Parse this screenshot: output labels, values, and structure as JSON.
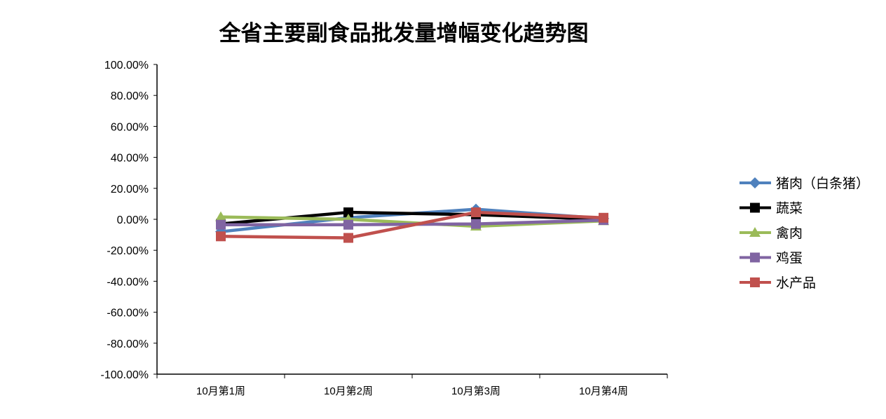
{
  "chart_data": {
    "type": "line",
    "title": "全省主要副食品批发量增幅变化趋势图",
    "categories": [
      "10月第1周",
      "10月第2周",
      "10月第3周",
      "10月第4周"
    ],
    "ylim": [
      -100,
      100
    ],
    "yticks": [
      "100.00%",
      "80.00%",
      "60.00%",
      "40.00%",
      "20.00%",
      "0.00%",
      "-20.00%",
      "-40.00%",
      "-60.00%",
      "-80.00%",
      "-100.00%"
    ],
    "grid": false,
    "legend_position": "right",
    "series": [
      {
        "name": "猪肉（白条猪）",
        "color": "#4F81BD",
        "marker": "diamond",
        "values": [
          -8,
          1,
          6.5,
          0.5
        ]
      },
      {
        "name": "蔬菜",
        "color": "#000000",
        "marker": "square",
        "values": [
          -3,
          4.5,
          3,
          0
        ]
      },
      {
        "name": "禽肉",
        "color": "#9BBB59",
        "marker": "triangle",
        "values": [
          1.5,
          0,
          -4.5,
          -1
        ]
      },
      {
        "name": "鸡蛋",
        "color": "#8064A2",
        "marker": "square",
        "values": [
          -3.5,
          -3.5,
          -3,
          -0.5
        ]
      },
      {
        "name": "水产品",
        "color": "#C0504D",
        "marker": "square",
        "values": [
          -11,
          -12,
          4.5,
          1
        ]
      }
    ]
  }
}
